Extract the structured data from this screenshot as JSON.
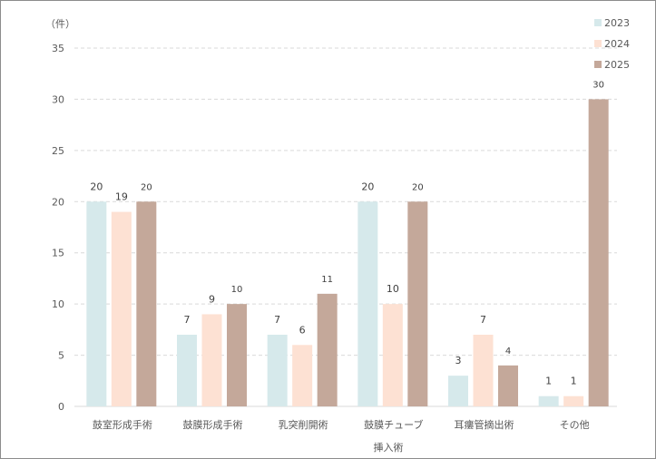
{
  "chart_data": {
    "type": "bar",
    "title": "",
    "xlabel": "挿入術",
    "ylabel": "",
    "unit_label": "（件）",
    "ylim": [
      0,
      35
    ],
    "yticks": [
      0,
      5,
      10,
      15,
      20,
      25,
      30,
      35
    ],
    "grid": true,
    "legend_position": "top-right",
    "categories": [
      "鼓室形成手術",
      "鼓膜形成手術",
      "乳突削開術",
      "鼓膜チューブ",
      "耳瘻管摘出術",
      "その他"
    ],
    "series": [
      {
        "name": "2023",
        "color": "#d6e9eb",
        "values": [
          20,
          7,
          7,
          20,
          3,
          1
        ]
      },
      {
        "name": "2024",
        "color": "#fde1d3",
        "values": [
          19,
          9,
          6,
          10,
          7,
          1
        ]
      },
      {
        "name": "2025",
        "color": "#c4a89a",
        "values": [
          20,
          10,
          11,
          20,
          4,
          30
        ]
      }
    ]
  }
}
